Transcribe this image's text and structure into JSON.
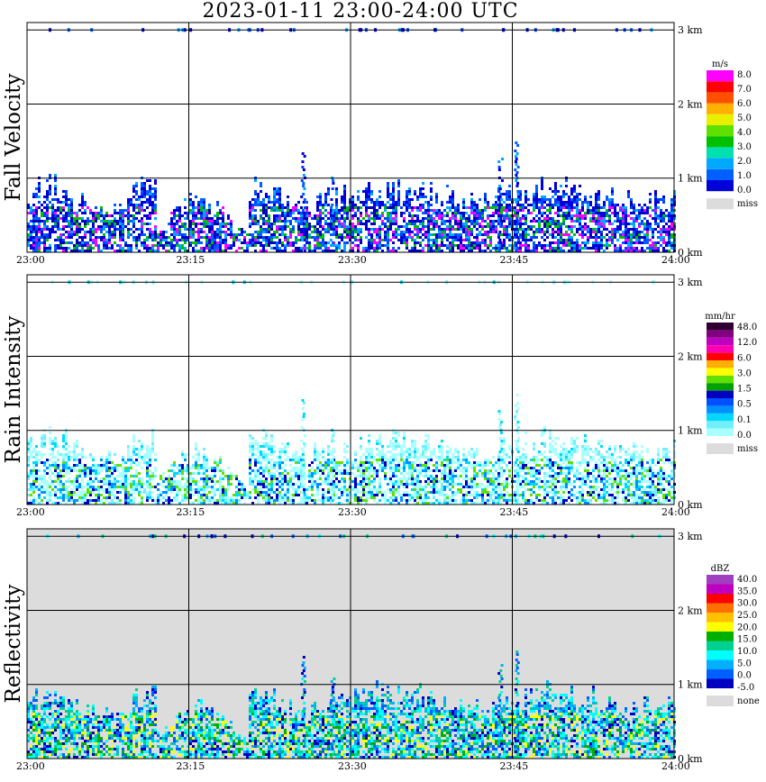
{
  "title": "2023-01-11   23:00-24:00 UTC",
  "chart_data": [
    {
      "type": "heatmap",
      "ylabel": "Fall Velocity",
      "xticks": [
        "23:00",
        "23:15",
        "23:30",
        "23:45",
        "24:00"
      ],
      "yticks": [
        "0 km",
        "1 km",
        "2 km",
        "3 km"
      ],
      "ylim_km": [
        0,
        3.1
      ],
      "grid": true,
      "background": "#ffffff",
      "colorbar": {
        "unit": "m/s",
        "colors": [
          "#0000d8",
          "#0060ff",
          "#00a8ff",
          "#00e0b0",
          "#00c000",
          "#60e000",
          "#e8f000",
          "#ffb000",
          "#ff5000",
          "#ff0000",
          "#ff00ff"
        ],
        "labels": [
          "8.0",
          "7.0",
          "6.0",
          "5.0",
          "4.0",
          "3.0",
          "2.0",
          "1.0",
          "0.0"
        ],
        "miss_label": "miss"
      },
      "echo_colors": [
        "#0000d8",
        "#0000d8",
        "#0040ff",
        "#0060ff",
        "#00a8ff",
        "#0000b0",
        "#ff00ff",
        "#00c000"
      ]
    },
    {
      "type": "heatmap",
      "ylabel": "Rain Intensity",
      "xticks": [
        "23:00",
        "23:15",
        "23:30",
        "23:45",
        "24:00"
      ],
      "yticks": [
        "0 km",
        "1 km",
        "2 km",
        "3 km"
      ],
      "ylim_km": [
        0,
        3.1
      ],
      "grid": true,
      "background": "#ffffff",
      "colorbar": {
        "unit": "mm/hr",
        "colors": [
          "#aaffff",
          "#70f0ff",
          "#00d8ff",
          "#0090ff",
          "#0050ff",
          "#0000c0",
          "#00a000",
          "#60e000",
          "#ffff00",
          "#ffb000",
          "#ff0000",
          "#ff00b0",
          "#c000c0",
          "#800080",
          "#300030"
        ],
        "labels": [
          "48.0",
          "12.0",
          "6.0",
          "3.0",
          "1.5",
          "0.5",
          "0.1",
          "0.0"
        ],
        "miss_label": "miss"
      },
      "echo_colors": [
        "#aaffff",
        "#aaffff",
        "#70f0ff",
        "#aaffff",
        "#00d8ff",
        "#0090ff",
        "#0000c0",
        "#60e000"
      ]
    },
    {
      "type": "heatmap",
      "ylabel": "Reflectivity",
      "xticks": [
        "23:00",
        "23:15",
        "23:30",
        "23:45",
        "24:00"
      ],
      "yticks": [
        "0 km",
        "1 km",
        "2 km",
        "3 km"
      ],
      "ylim_km": [
        0,
        3.1
      ],
      "grid": true,
      "background": "#dcdcdc",
      "colorbar": {
        "unit": "dBZ",
        "colors": [
          "#0000c0",
          "#0060ff",
          "#00b0ff",
          "#00ffff",
          "#00d090",
          "#00b000",
          "#ffff00",
          "#ffc000",
          "#ff7000",
          "#ff0000",
          "#c000c0",
          "#a040c0"
        ],
        "labels": [
          "40.0",
          "35.0",
          "30.0",
          "25.0",
          "20.0",
          "15.0",
          "10.0",
          "5.0",
          "0.0",
          "-5.0"
        ],
        "miss_label": "none"
      },
      "echo_colors": [
        "#00b0ff",
        "#00ffff",
        "#0060ff",
        "#00d090",
        "#0000c0",
        "#00b000",
        "#00ffff",
        "#ffff00"
      ]
    }
  ]
}
